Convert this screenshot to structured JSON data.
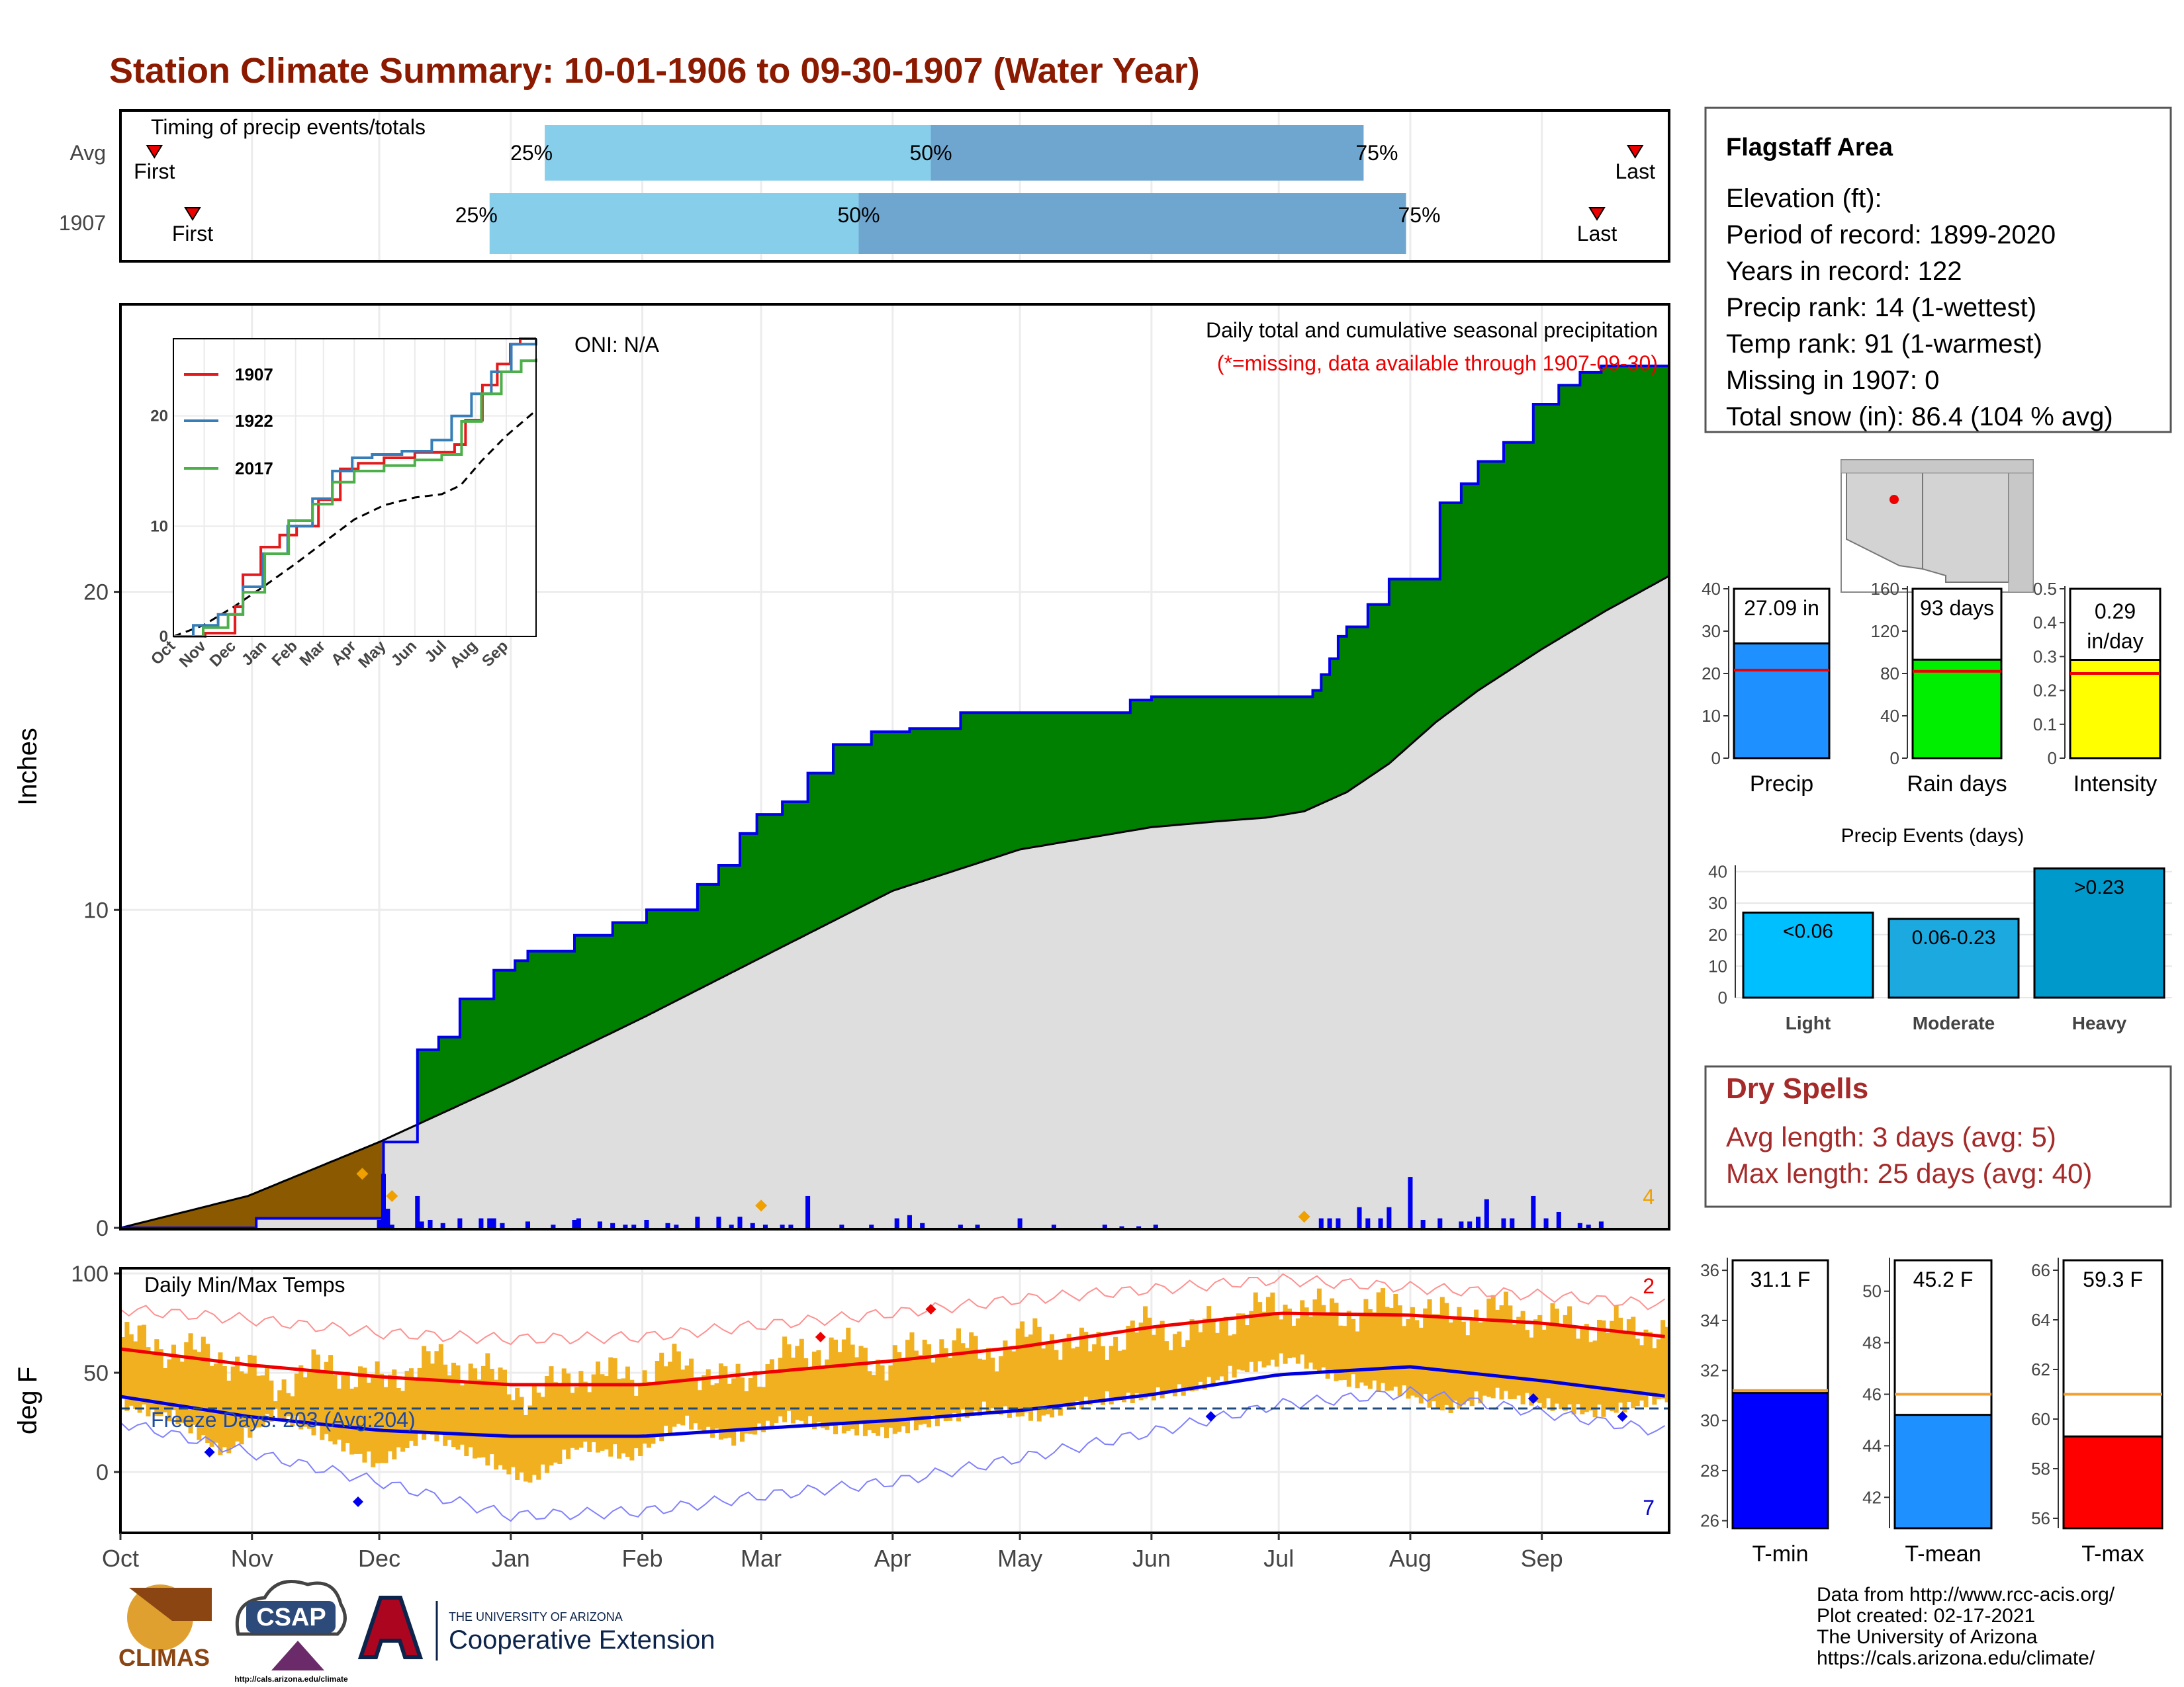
{
  "title": "Station Climate Summary: 10-01-1906 to 09-30-1907 (Water Year)",
  "colors": {
    "title": "#8b1a00",
    "green": "#008000",
    "brown": "#8b5a00",
    "grey": "#dedede",
    "blue": "#0000ee",
    "orange": "#f0b020",
    "red": "#ee0000",
    "dryspell": "#a52a2a",
    "ltblue": "#87ceeb",
    "midblue": "#6fa6cf"
  },
  "timing": {
    "title": "Timing of precip events/totals",
    "rows": [
      {
        "label": "Avg",
        "first_label": "First",
        "last_label": "Last",
        "first_day": 8,
        "last_day": 357,
        "p25_label": "25%",
        "p50_label": "50%",
        "p75_label": "75%",
        "p25": 100,
        "p50": 191,
        "p75": 293
      },
      {
        "label": "1907",
        "first_label": "First",
        "last_label": "Last",
        "first_day": 17,
        "last_day": 348,
        "p25_label": "25%",
        "p50_label": "50%",
        "p75_label": "75%",
        "p25": 87,
        "p50": 174,
        "p75": 303
      }
    ]
  },
  "chart_data": [
    {
      "type": "area",
      "name": "Daily total and cumulative seasonal precipitation",
      "title": "Daily total and cumulative seasonal precipitation",
      "subtitle": "(*=missing, data available through 1907-09-30)",
      "oni": "ONI: N/A",
      "ylabel": "Inches",
      "ylim": [
        0,
        29
      ],
      "yticks": [
        0,
        10,
        20
      ],
      "xticks": [
        "Oct",
        "Nov",
        "Dec",
        "Jan",
        "Feb",
        "Mar",
        "Apr",
        "May",
        "Jun",
        "Jul",
        "Aug",
        "Sep"
      ],
      "xtick_days": [
        0,
        31,
        61,
        92,
        123,
        151,
        182,
        212,
        243,
        273,
        304,
        335
      ],
      "corner_count": "4",
      "cumulative_1907": {
        "days": [
          0,
          32,
          62,
          70,
          75,
          80,
          88,
          93,
          96,
          107,
          116,
          124,
          136,
          141,
          146,
          150,
          156,
          162,
          168,
          177,
          182,
          186,
          198,
          212,
          238,
          243,
          260,
          281,
          283,
          285,
          287,
          289,
          294,
          299,
          304,
          311,
          316,
          320,
          326,
          333,
          339,
          344,
          349,
          365
        ],
        "values": [
          0.0,
          0.3,
          2.7,
          5.6,
          6.0,
          7.2,
          8.1,
          8.4,
          8.7,
          9.2,
          9.6,
          10.0,
          10.8,
          11.4,
          12.4,
          13.0,
          13.4,
          14.3,
          15.2,
          15.6,
          15.6,
          15.7,
          16.2,
          16.2,
          16.6,
          16.7,
          16.7,
          16.9,
          17.4,
          17.9,
          18.6,
          18.9,
          19.6,
          20.4,
          20.4,
          22.8,
          23.4,
          24.1,
          24.7,
          25.9,
          26.5,
          26.9,
          27.1,
          27.1
        ]
      },
      "average_cumulative": {
        "days": [
          0,
          30,
          61,
          92,
          123,
          151,
          182,
          212,
          243,
          260,
          270,
          279,
          289,
          299,
          310,
          320,
          335,
          350,
          365
        ],
        "values": [
          0.0,
          1.0,
          2.7,
          4.6,
          6.6,
          8.5,
          10.6,
          11.9,
          12.6,
          12.8,
          12.9,
          13.1,
          13.7,
          14.6,
          15.9,
          16.9,
          18.2,
          19.4,
          20.5
        ]
      },
      "daily_days": [
        61,
        62,
        63,
        64,
        70,
        71,
        73,
        76,
        80,
        85,
        87,
        88,
        90,
        96,
        102,
        107,
        108,
        113,
        116,
        119,
        121,
        124,
        129,
        131,
        136,
        141,
        144,
        146,
        149,
        152,
        156,
        158,
        162,
        170,
        177,
        183,
        186,
        189,
        198,
        202,
        212,
        220,
        232,
        236,
        240,
        244,
        283,
        285,
        287,
        292,
        294,
        297,
        299,
        304,
        307,
        311,
        316,
        318,
        320,
        322,
        326,
        328,
        333,
        336,
        339,
        344,
        346,
        349
      ],
      "daily_values": [
        0.25,
        1.7,
        0.6,
        0.1,
        1.0,
        0.2,
        0.25,
        0.15,
        0.3,
        0.3,
        0.3,
        0.3,
        0.15,
        0.2,
        0.1,
        0.25,
        0.3,
        0.2,
        0.15,
        0.1,
        0.1,
        0.25,
        0.15,
        0.1,
        0.35,
        0.35,
        0.1,
        0.35,
        0.15,
        0.1,
        0.1,
        0.1,
        1.0,
        0.1,
        0.1,
        0.3,
        0.4,
        0.15,
        0.1,
        0.1,
        0.3,
        0.1,
        0.1,
        0.05,
        0.05,
        0.1,
        0.3,
        0.3,
        0.3,
        0.65,
        0.3,
        0.3,
        0.65,
        1.6,
        0.25,
        0.3,
        0.2,
        0.2,
        0.35,
        0.9,
        0.3,
        0.3,
        1.0,
        0.3,
        0.5,
        0.15,
        0.1,
        0.2
      ],
      "marker_days": [
        57,
        64,
        151,
        279
      ],
      "marker_values": [
        1.7,
        1.0,
        0.7,
        0.35
      ]
    },
    {
      "type": "line",
      "name": "inset",
      "xticks": [
        "Oct",
        "Nov",
        "Dec",
        "Jan",
        "Feb",
        "Mar",
        "Apr",
        "May",
        "Jun",
        "Jul",
        "Aug",
        "Sep"
      ],
      "ylim": [
        0,
        27
      ],
      "yticks": [
        0,
        10,
        20
      ],
      "series": [
        {
          "name": "1907",
          "color": "#e41a1c",
          "days": [
            0,
            32,
            62,
            70,
            88,
            107,
            124,
            146,
            168,
            186,
            212,
            243,
            283,
            294,
            311,
            326,
            339,
            349,
            365
          ],
          "values": [
            0.0,
            0.3,
            2.7,
            5.6,
            8.1,
            9.2,
            10.0,
            12.4,
            15.2,
            15.7,
            16.2,
            16.7,
            17.4,
            19.6,
            22.8,
            24.7,
            26.5,
            27.1,
            27.1
          ]
        },
        {
          "name": "1922",
          "color": "#377eb8",
          "days": [
            0,
            20,
            45,
            70,
            90,
            115,
            140,
            160,
            180,
            200,
            230,
            260,
            280,
            300,
            320,
            340,
            365
          ],
          "values": [
            0.0,
            1.0,
            2.0,
            4.5,
            7.5,
            10.0,
            12.5,
            15.0,
            16.2,
            16.5,
            16.8,
            17.8,
            20.0,
            22.0,
            24.0,
            26.5,
            27.5
          ]
        },
        {
          "name": "2017",
          "color": "#4daf4a",
          "days": [
            0,
            30,
            55,
            70,
            92,
            116,
            140,
            160,
            182,
            212,
            243,
            270,
            290,
            310,
            330,
            350,
            365
          ],
          "values": [
            0.0,
            0.8,
            2.0,
            4.0,
            7.5,
            10.5,
            12.0,
            14.0,
            15.0,
            15.5,
            16.0,
            16.5,
            19.5,
            22.0,
            24.0,
            25.0,
            25.2
          ]
        }
      ],
      "average": {
        "days": [
          0,
          30,
          61,
          92,
          123,
          151,
          182,
          212,
          243,
          270,
          289,
          310,
          335,
          365
        ],
        "values": [
          0.0,
          1.0,
          2.7,
          4.6,
          6.6,
          8.5,
          10.6,
          11.9,
          12.6,
          12.9,
          13.7,
          15.9,
          18.2,
          20.5
        ]
      }
    },
    {
      "type": "bar",
      "name": "Daily Min/Max Temps",
      "title": "Daily Min/Max Temps",
      "ylabel": "deg F",
      "ylim": [
        -30,
        102
      ],
      "yticks": [
        0,
        50,
        100
      ],
      "freeze_label": "Freeze Days: 203 (Avg:204)",
      "freeze_line": 32,
      "count_high": "2",
      "count_low": "7",
      "avg_max": {
        "days": [
          0,
          30,
          61,
          92,
          123,
          151,
          182,
          212,
          243,
          273,
          304,
          335,
          365
        ],
        "values": [
          62,
          54,
          48,
          44,
          44,
          50,
          56,
          63,
          73,
          80,
          79,
          75,
          68
        ]
      },
      "avg_min": {
        "days": [
          0,
          30,
          61,
          92,
          123,
          151,
          182,
          212,
          243,
          273,
          304,
          335,
          365
        ],
        "values": [
          38,
          28,
          21,
          18,
          18,
          22,
          26,
          31,
          39,
          49,
          53,
          46,
          38
        ]
      },
      "rec_max": {
        "days": [
          0,
          30,
          61,
          92,
          123,
          151,
          182,
          212,
          243,
          273,
          304,
          335,
          365
        ],
        "values": [
          82,
          77,
          70,
          67,
          68,
          74,
          80,
          87,
          92,
          97,
          93,
          89,
          84
        ]
      },
      "rec_min": {
        "days": [
          0,
          30,
          61,
          92,
          123,
          151,
          182,
          212,
          243,
          273,
          304,
          335,
          365
        ],
        "values": [
          25,
          10,
          -5,
          -22,
          -20,
          -12,
          -5,
          7,
          20,
          34,
          40,
          30,
          20
        ]
      },
      "daily_max": {
        "days": [
          0,
          12,
          24,
          36,
          48,
          60,
          72,
          84,
          96,
          108,
          120,
          132,
          144,
          156,
          168,
          180,
          192,
          204,
          216,
          228,
          240,
          252,
          264,
          276,
          288,
          300,
          312,
          324,
          336,
          348,
          360,
          365
        ],
        "values": [
          68,
          62,
          58,
          44,
          54,
          45,
          56,
          52,
          38,
          50,
          48,
          56,
          44,
          58,
          64,
          55,
          66,
          60,
          70,
          62,
          73,
          70,
          80,
          84,
          80,
          84,
          78,
          82,
          76,
          74,
          72,
          70
        ]
      },
      "daily_min": {
        "days": [
          0,
          12,
          24,
          36,
          48,
          60,
          72,
          84,
          96,
          108,
          120,
          132,
          144,
          156,
          168,
          180,
          192,
          204,
          216,
          228,
          240,
          252,
          264,
          276,
          288,
          300,
          312,
          324,
          336,
          348,
          360,
          365
        ],
        "values": [
          38,
          32,
          14,
          34,
          22,
          8,
          24,
          12,
          0,
          18,
          12,
          30,
          20,
          32,
          26,
          24,
          30,
          36,
          32,
          40,
          42,
          46,
          56,
          62,
          50,
          46,
          36,
          44,
          38,
          34,
          40,
          42
        ]
      },
      "marker_days": [
        21,
        56,
        165,
        191,
        257,
        333,
        354
      ],
      "marker_values": [
        10,
        -15,
        68,
        82,
        28,
        37,
        28
      ]
    },
    {
      "type": "bar",
      "name": "Precip",
      "categories": [
        "Precip"
      ],
      "values": [
        27.09
      ],
      "average": 20.8,
      "ylim": [
        0,
        40
      ],
      "yticks": [
        0,
        10,
        20,
        30,
        40
      ],
      "value_label": "27.09 in",
      "color": "#1e90ff"
    },
    {
      "type": "bar",
      "name": "Rain days",
      "categories": [
        "Rain days"
      ],
      "values": [
        93
      ],
      "average": 82,
      "ylim": [
        0,
        160
      ],
      "yticks": [
        0,
        40,
        80,
        120,
        160
      ],
      "value_label": "93 days",
      "color": "#00ee00"
    },
    {
      "type": "bar",
      "name": "Intensity",
      "categories": [
        "Intensity"
      ],
      "values": [
        0.29
      ],
      "average": 0.25,
      "ylim": [
        0,
        0.5
      ],
      "yticks": [
        0.0,
        0.1,
        0.2,
        0.3,
        0.4,
        0.5
      ],
      "value_label_1": "0.29",
      "value_label_2": "in/day",
      "color": "#ffff00"
    },
    {
      "type": "bar",
      "name": "Precip Events (days)",
      "title": "Precip Events (days)",
      "categories": [
        "Light",
        "Moderate",
        "Heavy"
      ],
      "values": [
        27,
        25,
        41
      ],
      "bar_labels": [
        "<0.06",
        "0.06-0.23",
        ">0.23"
      ],
      "ylim": [
        0,
        42
      ],
      "yticks": [
        0,
        10,
        20,
        30,
        40
      ],
      "colors": [
        "#00bfff",
        "#1ca9e0",
        "#0099cc"
      ]
    },
    {
      "type": "bar",
      "name": "T-min",
      "categories": [
        "T-min"
      ],
      "values": [
        31.1
      ],
      "average": 31.2,
      "ylim": [
        25.7,
        36.4
      ],
      "yticks": [
        26,
        28,
        30,
        32,
        34,
        36
      ],
      "value_label": "31.1 F",
      "color": "#0000ff"
    },
    {
      "type": "bar",
      "name": "T-mean",
      "categories": [
        "T-mean"
      ],
      "values": [
        45.2
      ],
      "average": 46.0,
      "ylim": [
        40.8,
        51.2
      ],
      "yticks": [
        42,
        44,
        46,
        48,
        50
      ],
      "value_label": "45.2 F",
      "color": "#1e90ff"
    },
    {
      "type": "bar",
      "name": "T-max",
      "categories": [
        "T-max"
      ],
      "values": [
        59.3
      ],
      "average": 61.0,
      "ylim": [
        55.6,
        66.4
      ],
      "yticks": [
        56,
        58,
        60,
        62,
        64,
        66
      ],
      "value_label": "59.3 F",
      "color": "#ff0000"
    }
  ],
  "info": {
    "title": "Flagstaff Area",
    "lines": [
      "Elevation (ft):",
      "Period of record: 1899-2020",
      "Years in record: 122",
      "Precip rank: 14 (1-wettest)",
      "Temp rank: 91 (1-warmest)",
      "Missing in 1907: 0",
      "Total snow (in): 86.4 (104 % avg)"
    ]
  },
  "dry_spells": {
    "title": "Dry Spells",
    "line1": "Avg length: 3 days (avg: 5)",
    "line2": "Max length: 25 days (avg: 40)"
  },
  "footer": {
    "lines": [
      "Data from http://www.rcc-acis.org/",
      "Plot created: 02-17-2021",
      "The University of Arizona",
      "https://cals.arizona.edu/climate/"
    ]
  },
  "logos": {
    "climas": "CLIMAS",
    "csap": "CSAP",
    "csap_url": "http://cals.arizona.edu/climate",
    "ua_small": "THE UNIVERSITY OF ARIZONA",
    "ua_big": "Cooperative Extension"
  }
}
